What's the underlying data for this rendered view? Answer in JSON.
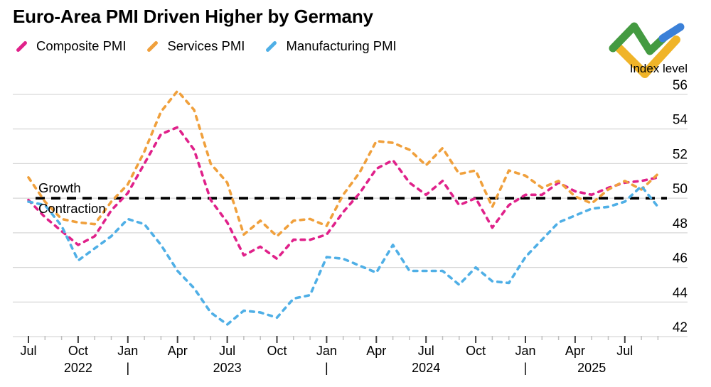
{
  "chart_data": {
    "type": "line",
    "title": "Euro-Area PMI Driven Higher by Germany",
    "ylabel": "Index level",
    "xlabel": "",
    "grid": "horizontal",
    "legend_position": "top-left",
    "line_style": "dashed",
    "x": [
      "Jul 2022",
      "Aug 2022",
      "Sep 2022",
      "Oct 2022",
      "Nov 2022",
      "Dec 2022",
      "Jan 2023",
      "Feb 2023",
      "Mar 2023",
      "Apr 2023",
      "May 2023",
      "Jun 2023",
      "Jul 2023",
      "Aug 2023",
      "Sep 2023",
      "Oct 2023",
      "Nov 2023",
      "Dec 2023",
      "Jan 2024",
      "Feb 2024",
      "Mar 2024",
      "Apr 2024",
      "May 2024",
      "Jun 2024",
      "Jul 2024",
      "Aug 2024",
      "Sep 2024",
      "Oct 2024",
      "Nov 2024",
      "Dec 2024",
      "Jan 2025",
      "Feb 2025",
      "Mar 2025",
      "Apr 2025",
      "May 2025",
      "Jun 2025",
      "Jul 2025",
      "Aug 2025",
      "Sep 2025"
    ],
    "series": [
      {
        "name": "Composite PMI",
        "color": "#e0218a",
        "values": [
          49.9,
          48.9,
          48.1,
          47.3,
          47.8,
          49.3,
          50.3,
          52.0,
          53.7,
          54.1,
          52.8,
          49.9,
          48.6,
          46.7,
          47.2,
          46.5,
          47.6,
          47.6,
          47.9,
          49.2,
          50.3,
          51.7,
          52.2,
          50.9,
          50.2,
          51.0,
          49.6,
          50.0,
          48.3,
          49.6,
          50.2,
          50.2,
          50.9,
          50.4,
          50.2,
          50.6,
          50.9,
          51.0,
          51.2
        ]
      },
      {
        "name": "Services PMI",
        "color": "#f0a03c",
        "values": [
          51.2,
          49.8,
          48.8,
          48.6,
          48.5,
          49.8,
          50.8,
          52.7,
          55.0,
          56.2,
          55.1,
          52.0,
          50.9,
          47.9,
          48.7,
          47.8,
          48.7,
          48.8,
          48.4,
          50.2,
          51.5,
          53.3,
          53.2,
          52.8,
          51.9,
          52.9,
          51.4,
          51.6,
          49.5,
          51.6,
          51.3,
          50.6,
          51.0,
          50.1,
          49.7,
          50.5,
          51.0,
          50.5,
          51.4
        ]
      },
      {
        "name": "Manufacturing PMI",
        "color": "#4fafe6",
        "values": [
          49.8,
          49.6,
          48.4,
          46.4,
          47.1,
          47.8,
          48.8,
          48.5,
          47.3,
          45.8,
          44.8,
          43.4,
          42.7,
          43.5,
          43.4,
          43.1,
          44.2,
          44.4,
          46.6,
          46.5,
          46.1,
          45.7,
          47.3,
          45.8,
          45.8,
          45.8,
          45.0,
          46.0,
          45.2,
          45.1,
          46.6,
          47.6,
          48.6,
          49.0,
          49.4,
          49.5,
          49.8,
          50.7,
          49.5
        ]
      }
    ],
    "yticks": [
      56,
      54,
      52,
      50,
      48,
      46,
      44,
      42
    ],
    "ylim": [
      41.6,
      56.8
    ],
    "x_quarter_tick_interval": 3,
    "threshold": {
      "value": 50,
      "label_above": "Growth",
      "label_below": "Contraction",
      "color": "#000000",
      "style": "dashed"
    },
    "years": [
      {
        "label": "2022",
        "from_index": 0,
        "to_index": 6
      },
      {
        "label": "2023",
        "from_index": 6,
        "to_index": 18
      },
      {
        "label": "2024",
        "from_index": 18,
        "to_index": 30
      },
      {
        "label": "2025",
        "from_index": 30,
        "to_index": 38
      }
    ],
    "year_separator_char": "|",
    "year_separator_indices": [
      6,
      18,
      30
    ]
  },
  "logo": {
    "label": "LiteFinance logo",
    "green": "#449a41",
    "blue": "#3b80d8",
    "yellow": "#f0b428"
  },
  "style": {
    "gridline_color": "#d7d7d7",
    "major_tick_color": "#404040",
    "minor_tick_color": "#bfbfbf",
    "year_text_color": "#6f6f6f"
  }
}
